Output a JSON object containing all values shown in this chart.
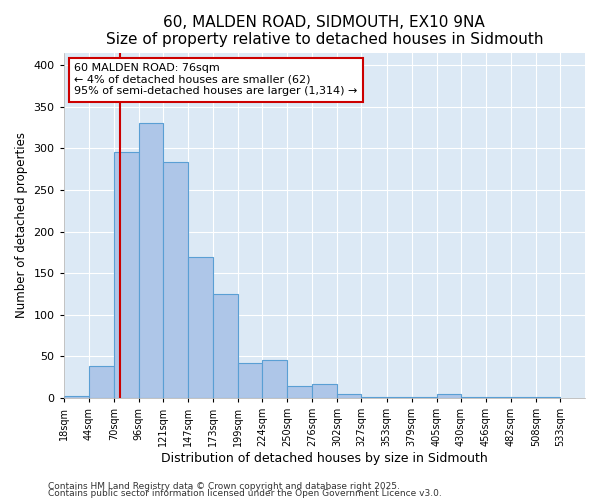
{
  "title": "60, MALDEN ROAD, SIDMOUTH, EX10 9NA",
  "subtitle": "Size of property relative to detached houses in Sidmouth",
  "xlabel": "Distribution of detached houses by size in Sidmouth",
  "ylabel": "Number of detached properties",
  "bar_left_edges": [
    18,
    44,
    70,
    96,
    121,
    147,
    173,
    199,
    224,
    250,
    276,
    302,
    327,
    353,
    379,
    405,
    430,
    456,
    482,
    508
  ],
  "bar_widths": [
    26,
    26,
    26,
    25,
    26,
    26,
    26,
    25,
    26,
    26,
    26,
    25,
    26,
    26,
    26,
    25,
    26,
    26,
    26,
    25
  ],
  "bar_heights": [
    2,
    38,
    296,
    330,
    284,
    170,
    125,
    42,
    46,
    15,
    17,
    5,
    1,
    1,
    1,
    5,
    1,
    1,
    1,
    1
  ],
  "tick_labels": [
    "18sqm",
    "44sqm",
    "70sqm",
    "96sqm",
    "121sqm",
    "147sqm",
    "173sqm",
    "199sqm",
    "224sqm",
    "250sqm",
    "276sqm",
    "302sqm",
    "327sqm",
    "353sqm",
    "379sqm",
    "405sqm",
    "430sqm",
    "456sqm",
    "482sqm",
    "508sqm",
    "533sqm"
  ],
  "bar_color": "#aec6e8",
  "bar_edge_color": "#5a9fd4",
  "fig_background_color": "#ffffff",
  "plot_background_color": "#dce9f5",
  "grid_color": "#ffffff",
  "vline_x": 76,
  "vline_color": "#cc0000",
  "annotation_line1": "60 MALDEN ROAD: 76sqm",
  "annotation_line2": "← 4% of detached houses are smaller (62)",
  "annotation_line3": "95% of semi-detached houses are larger (1,314) →",
  "annotation_box_color": "#ffffff",
  "annotation_box_edge": "#cc0000",
  "ylim": [
    0,
    415
  ],
  "xlim": [
    18,
    559
  ],
  "yticks": [
    0,
    50,
    100,
    150,
    200,
    250,
    300,
    350,
    400
  ],
  "footnote1": "Contains HM Land Registry data © Crown copyright and database right 2025.",
  "footnote2": "Contains public sector information licensed under the Open Government Licence v3.0.",
  "title_fontsize": 11,
  "subtitle_fontsize": 9.5,
  "xlabel_fontsize": 9,
  "ylabel_fontsize": 8.5,
  "tick_fontsize": 7,
  "annotation_fontsize": 8,
  "footnote_fontsize": 6.5
}
